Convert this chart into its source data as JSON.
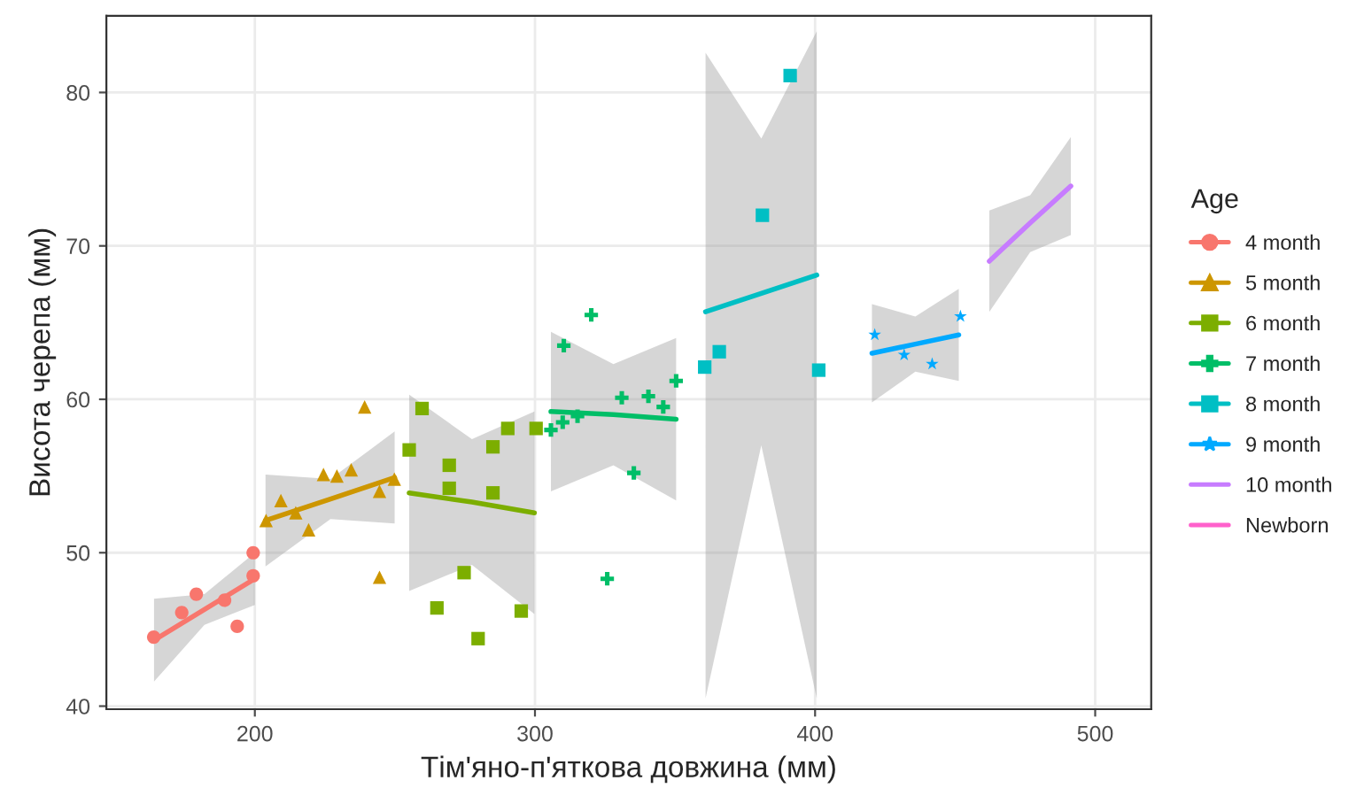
{
  "chart_data": {
    "type": "scatter",
    "xlabel": "Тім'яно-п'яткова довжина (мм)",
    "ylabel": "Висота черепа (мм)",
    "legend_title": "Age",
    "legend": "right",
    "grid": true,
    "xlim": [
      147,
      520
    ],
    "ylim": [
      39.8,
      85
    ],
    "xticks": [
      200,
      300,
      400,
      500
    ],
    "yticks": [
      40,
      50,
      60,
      70,
      80
    ],
    "series": [
      {
        "name": "4 month",
        "color": "#f8766d",
        "marker": "circle",
        "x": [
          163.9,
          173.9,
          179.1,
          189.2,
          193.7,
          199.4,
          199.4
        ],
        "values": [
          44.5,
          46.1,
          47.3,
          46.9,
          45.2,
          50.0,
          48.5
        ]
      },
      {
        "color": "#f8766d",
        "type": "line",
        "x": [
          164,
          182,
          200
        ],
        "values": [
          44.3,
          46.3,
          48.3
        ],
        "lower": [
          41.6,
          45.3,
          46.6
        ],
        "upper": [
          47.0,
          47.3,
          50.0
        ]
      },
      {
        "name": "5 month",
        "color": "#cd9600",
        "marker": "triangle",
        "x": [
          204.0,
          209.3,
          214.6,
          219.2,
          224.5,
          229.3,
          234.4,
          239.2,
          244.5,
          249.8,
          244.5
        ],
        "values": [
          52.1,
          53.4,
          52.6,
          51.5,
          55.1,
          55.0,
          55.4,
          59.5,
          48.4,
          54.8,
          54.0
        ]
      },
      {
        "color": "#cd9600",
        "type": "line",
        "x": [
          203.8,
          227,
          249.9
        ],
        "values": [
          52.1,
          53.5,
          54.9
        ],
        "lower": [
          49.1,
          52.2,
          51.9
        ],
        "upper": [
          55.1,
          54.8,
          57.9
        ]
      },
      {
        "name": "6 month",
        "color": "#7cae00",
        "marker": "square",
        "x": [
          255.1,
          259.7,
          269.4,
          269.4,
          265.0,
          274.7,
          279.7,
          285.0,
          285.0,
          290.3,
          295.1,
          300.4
        ],
        "values": [
          56.7,
          59.4,
          55.7,
          54.2,
          46.4,
          48.7,
          44.4,
          56.9,
          53.9,
          58.1,
          46.2,
          58.1
        ]
      },
      {
        "color": "#7cae00",
        "type": "line",
        "x": [
          255.1,
          277.5,
          299.8
        ],
        "values": [
          53.9,
          53.3,
          52.6
        ],
        "lower": [
          47.5,
          49.2,
          46.0
        ],
        "upper": [
          60.3,
          57.4,
          59.2
        ]
      },
      {
        "name": "7 month",
        "color": "#00be67",
        "marker": "cross",
        "x": [
          305.7,
          309.9,
          310.3,
          315.2,
          320.1,
          325.8,
          331.0,
          335.3,
          340.5,
          345.8,
          350.4
        ],
        "values": [
          58.0,
          58.5,
          63.5,
          58.9,
          65.5,
          48.3,
          60.1,
          55.2,
          60.2,
          59.5,
          61.2
        ]
      },
      {
        "color": "#00be67",
        "type": "line",
        "x": [
          305.7,
          328,
          350.4
        ],
        "values": [
          59.2,
          59.0,
          58.7
        ],
        "lower": [
          54.0,
          55.7,
          53.4
        ],
        "upper": [
          64.4,
          62.3,
          64.0
        ]
      },
      {
        "name": "8 month",
        "color": "#00bfc4",
        "marker": "square",
        "x": [
          360.6,
          365.8,
          381.2,
          391.1,
          401.3
        ],
        "values": [
          62.1,
          63.1,
          72.0,
          81.1,
          61.9
        ]
      },
      {
        "color": "#00bfc4",
        "type": "line",
        "x": [
          360.9,
          380.8,
          400.6
        ],
        "values": [
          65.7,
          66.9,
          68.1
        ],
        "lower": [
          40.5,
          57.0,
          40.5
        ],
        "upper": [
          82.6,
          77.0,
          84.0
        ]
      },
      {
        "name": "9 month",
        "color": "#00a9ff",
        "marker": "star",
        "x": [
          421.3,
          431.8,
          441.8,
          451.9
        ],
        "values": [
          64.2,
          62.9,
          62.3,
          65.4
        ]
      },
      {
        "color": "#00a9ff",
        "type": "line",
        "x": [
          420.3,
          435.8,
          451.3
        ],
        "values": [
          63.0,
          63.6,
          64.2
        ],
        "lower": [
          59.8,
          61.8,
          61.2
        ],
        "upper": [
          66.2,
          65.4,
          67.2
        ]
      },
      {
        "name": "10 month",
        "color": "#c77cff",
        "type": "line",
        "x": [
          462.2,
          476.8,
          491.3
        ],
        "values": [
          69.0,
          71.5,
          73.9
        ],
        "lower": [
          65.7,
          69.6,
          70.7
        ],
        "upper": [
          72.3,
          73.3,
          77.1
        ]
      },
      {
        "name": "Newborn",
        "color": "#ff61cc",
        "type": "line"
      }
    ]
  }
}
